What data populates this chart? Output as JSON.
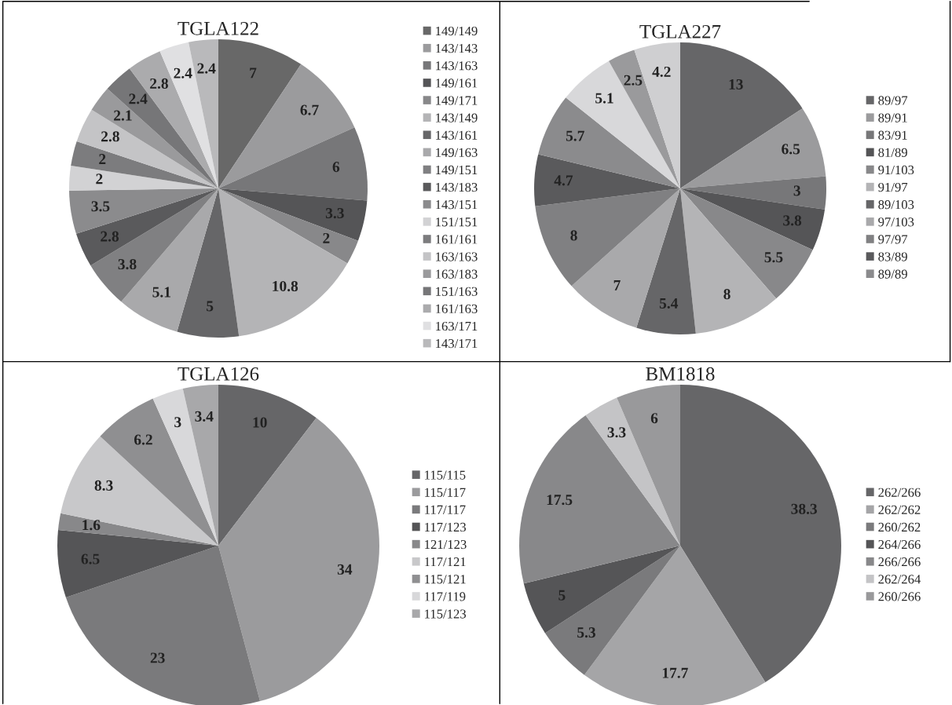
{
  "chart_data": [
    {
      "type": "pie",
      "title": "TGLA122",
      "legend": "right",
      "data_labels": true,
      "categories": [
        "149/149",
        "143/143",
        "143/163",
        "149/161",
        "149/171",
        "143/149",
        "143/161",
        "149/163",
        "149/151",
        "143/183",
        "143/151",
        "151/151",
        "161/161",
        "163/163",
        "163/183",
        "151/163",
        "161/163",
        "163/171",
        "143/171"
      ],
      "values": [
        7,
        6.7,
        6,
        3.3,
        2,
        10.8,
        5,
        5.1,
        3.8,
        2.8,
        3.5,
        2,
        2,
        2.8,
        2.1,
        2.4,
        2.8,
        2.4,
        2.4
      ],
      "colors": [
        "#686868",
        "#9b9b9d",
        "#777779",
        "#555557",
        "#88888a",
        "#b4b4b6",
        "#666668",
        "#a9a9ab",
        "#808082",
        "#5a5a5c",
        "#8b8b8d",
        "#d2d2d4",
        "#7c7c7e",
        "#c4c4c6",
        "#9a9a9c",
        "#767678",
        "#ababad",
        "#e0e0e2",
        "#b9b9bb"
      ]
    },
    {
      "type": "pie",
      "title": "TGLA227",
      "legend": "right",
      "data_labels": true,
      "categories": [
        "89/97",
        "89/91",
        "83/91",
        "81/89",
        "91/103",
        "91/97",
        "89/103",
        "97/103",
        "97/97",
        "83/89",
        "89/89",
        null,
        null,
        null
      ],
      "values": [
        13,
        6.5,
        3,
        3.8,
        5.5,
        8,
        5.4,
        7,
        8,
        4.7,
        5.7,
        5.1,
        2.5,
        4.2
      ],
      "colors": [
        "#666668",
        "#9b9b9d",
        "#777779",
        "#555557",
        "#88888a",
        "#b4b4b6",
        "#666668",
        "#a9a9ab",
        "#808082",
        "#5a5a5c",
        "#8b8b8d",
        "#d8d8da",
        "#9a9a9c",
        "#cfcfd1"
      ]
    },
    {
      "type": "pie",
      "title": "TGLA126",
      "legend": "right",
      "data_labels": true,
      "categories": [
        "115/115",
        "115/117",
        "117/117",
        "117/123",
        "121/123",
        "117/121",
        "115/121",
        "117/119",
        "115/123"
      ],
      "values": [
        10,
        34,
        23,
        6.5,
        1.6,
        8.3,
        6.2,
        3,
        3.4
      ],
      "colors": [
        "#666668",
        "#9b9b9d",
        "#7a7a7c",
        "#555557",
        "#88888a",
        "#c8c8ca",
        "#8f8f91",
        "#d8d8da",
        "#a8a8aa"
      ]
    },
    {
      "type": "pie",
      "title": "BM1818",
      "legend": "right",
      "data_labels": true,
      "categories": [
        "262/266",
        "262/262",
        "260/262",
        "264/266",
        "266/266",
        "262/264",
        "260/266"
      ],
      "values": [
        38.3,
        17.7,
        5.3,
        5,
        17.5,
        3.3,
        6
      ],
      "colors": [
        "#666668",
        "#a5a5a7",
        "#7a7a7c",
        "#555557",
        "#88888a",
        "#c4c4c6",
        "#99999b"
      ]
    }
  ]
}
